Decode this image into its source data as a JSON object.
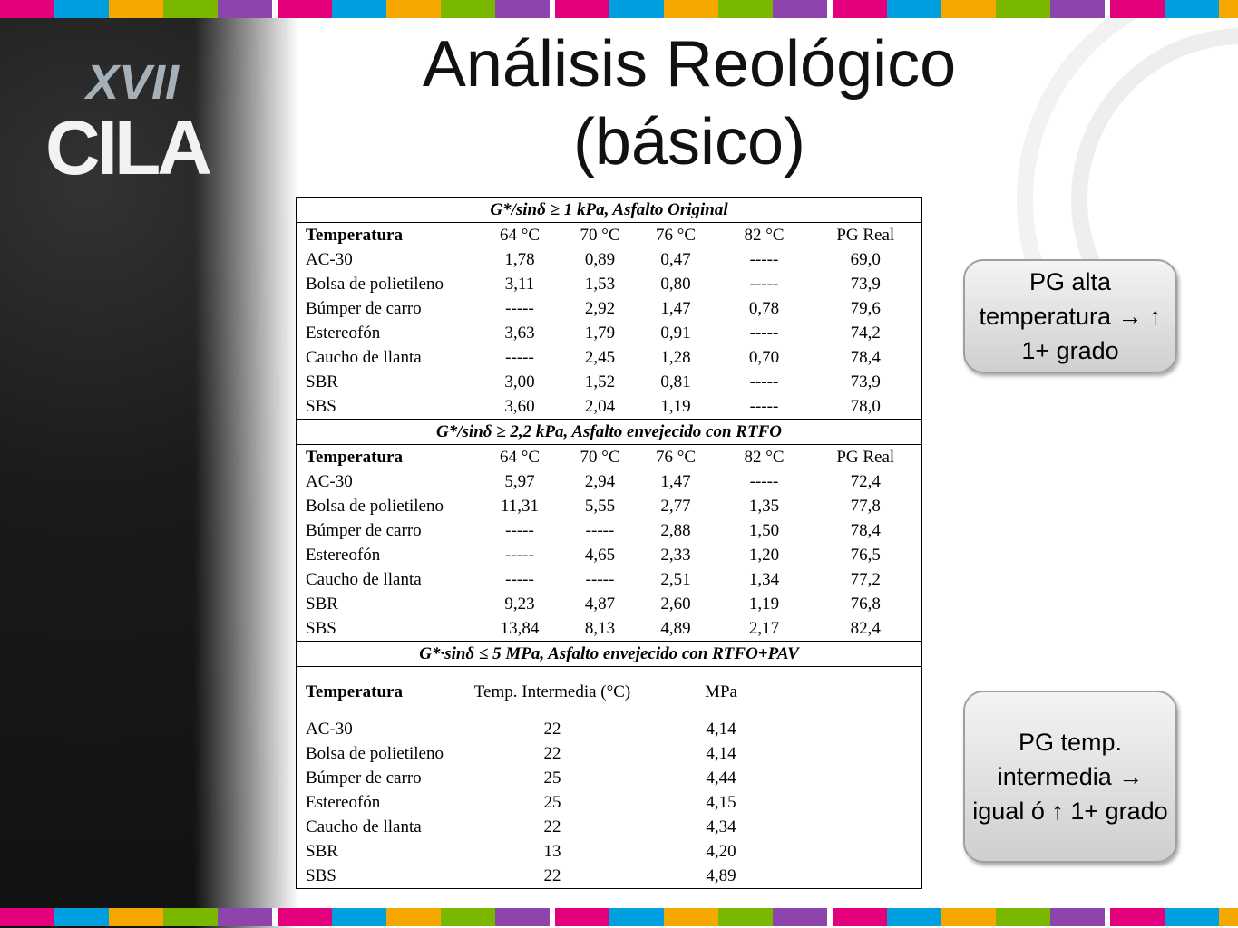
{
  "logo": {
    "top": "XVII",
    "bottom": "CILA"
  },
  "title": [
    "Análisis Reológico",
    "(básico)"
  ],
  "table": {
    "sections": [
      {
        "title": "G*/sinδ ≥ 1 kPa, Asfalto Original",
        "columns": [
          "Temperatura",
          "64 °C",
          "70 °C",
          "76 °C",
          "82 °C",
          "PG Real"
        ],
        "rows": [
          [
            "AC-30",
            "1,78",
            "0,89",
            "0,47",
            "-----",
            "69,0"
          ],
          [
            "Bolsa de polietileno",
            "3,11",
            "1,53",
            "0,80",
            "-----",
            "73,9"
          ],
          [
            "Búmper de carro",
            "-----",
            "2,92",
            "1,47",
            "0,78",
            "79,6"
          ],
          [
            "Estereofón",
            "3,63",
            "1,79",
            "0,91",
            "-----",
            "74,2"
          ],
          [
            "Caucho de llanta",
            "-----",
            "2,45",
            "1,28",
            "0,70",
            "78,4"
          ],
          [
            "SBR",
            "3,00",
            "1,52",
            "0,81",
            "-----",
            "73,9"
          ],
          [
            "SBS",
            "3,60",
            "2,04",
            "1,19",
            "-----",
            "78,0"
          ]
        ]
      },
      {
        "title": "G*/sinδ ≥ 2,2 kPa, Asfalto envejecido con RTFO",
        "columns": [
          "Temperatura",
          "64 °C",
          "70 °C",
          "76 °C",
          "82 °C",
          "PG Real"
        ],
        "rows": [
          [
            "AC-30",
            "5,97",
            "2,94",
            "1,47",
            "-----",
            "72,4"
          ],
          [
            "Bolsa de polietileno",
            "11,31",
            "5,55",
            "2,77",
            "1,35",
            "77,8"
          ],
          [
            "Búmper de carro",
            "-----",
            "-----",
            "2,88",
            "1,50",
            "78,4"
          ],
          [
            "Estereofón",
            "-----",
            "4,65",
            "2,33",
            "1,20",
            "76,5"
          ],
          [
            "Caucho de llanta",
            "-----",
            "-----",
            "2,51",
            "1,34",
            "77,2"
          ],
          [
            "SBR",
            "9,23",
            "4,87",
            "2,60",
            "1,19",
            "76,8"
          ],
          [
            "SBS",
            "13,84",
            "8,13",
            "4,89",
            "2,17",
            "82,4"
          ]
        ]
      },
      {
        "title": "G*·sinδ ≤ 5 MPa, Asfalto envejecido con RTFO+PAV",
        "columns": [
          "Temperatura",
          "Temp. Intermedia (°C)",
          "MPa"
        ],
        "rows": [
          [
            "AC-30",
            "22",
            "4,14"
          ],
          [
            "Bolsa de polietileno",
            "22",
            "4,14"
          ],
          [
            "Búmper de carro",
            "25",
            "4,44"
          ],
          [
            "Estereofón",
            "25",
            "4,15"
          ],
          [
            "Caucho de llanta",
            "22",
            "4,34"
          ],
          [
            "SBR",
            "13",
            "4,20"
          ],
          [
            "SBS",
            "22",
            "4,89"
          ]
        ]
      }
    ]
  },
  "callouts": [
    "PG alta temperatura → ↑ 1+ grado",
    "PG temp. intermedia → igual ó ↑ 1+ grado"
  ]
}
